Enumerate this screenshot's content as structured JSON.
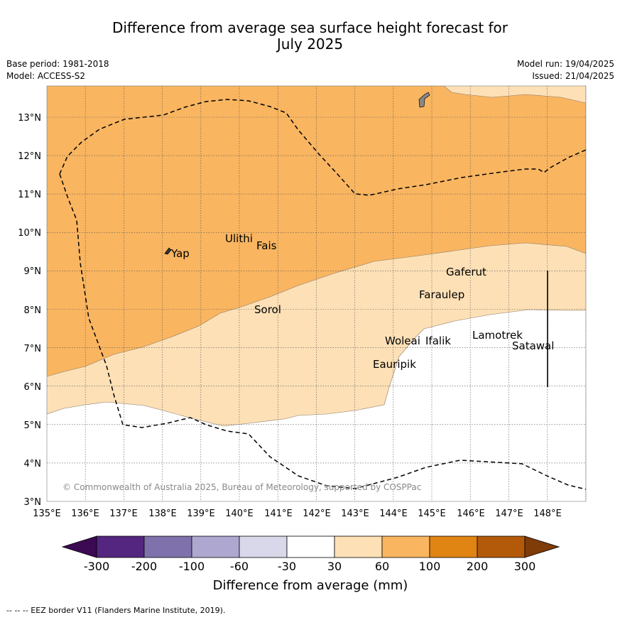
{
  "title_line1": "Difference from average sea surface height forecast for",
  "title_line2": "July 2025",
  "base_period": "Base period: 1981-2018",
  "model": "Model: ACCESS-S2",
  "model_run": "Model run: 19/04/2025",
  "issued": "Issued: 21/04/2025",
  "copyright": "© Commonwealth of Australia 2025, Bureau of Meteorology, supported by COSPPac",
  "footer": "--  --  -- EEZ border V11 (Flanders Marine Institute, 2019).",
  "map": {
    "lon_ticks": [
      "135°E",
      "136°E",
      "137°E",
      "138°E",
      "139°E",
      "140°E",
      "141°E",
      "142°E",
      "143°E",
      "144°E",
      "145°E",
      "146°E",
      "147°E",
      "148°E"
    ],
    "lat_ticks": [
      "3°N",
      "4°N",
      "5°N",
      "6°N",
      "7°N",
      "8°N",
      "9°N",
      "10°N",
      "11°N",
      "12°N",
      "13°N"
    ],
    "places": [
      "Yap",
      "Ulithi",
      "Fais",
      "Sorol",
      "Gaferut",
      "Faraulep",
      "Woleai",
      "Ifalik",
      "Eauripik",
      "Lamotrek",
      "Satawal"
    ]
  },
  "colorbar": {
    "title": "Difference from average (mm)",
    "ticks": [
      "-300",
      "-200",
      "-100",
      "-60",
      "-30",
      "30",
      "60",
      "100",
      "200",
      "300"
    ],
    "colors": [
      "#3b0a52",
      "#54267f",
      "#7f72ac",
      "#aea7d0",
      "#d9d8ea",
      "#ffffff",
      "#fde0b6",
      "#f9b560",
      "#e08414",
      "#b25a0a",
      "#7f3b08"
    ]
  },
  "colors": {
    "orange_band": "#f9b560",
    "light_band": "#fde0b6",
    "neutral": "#ffffff"
  }
}
